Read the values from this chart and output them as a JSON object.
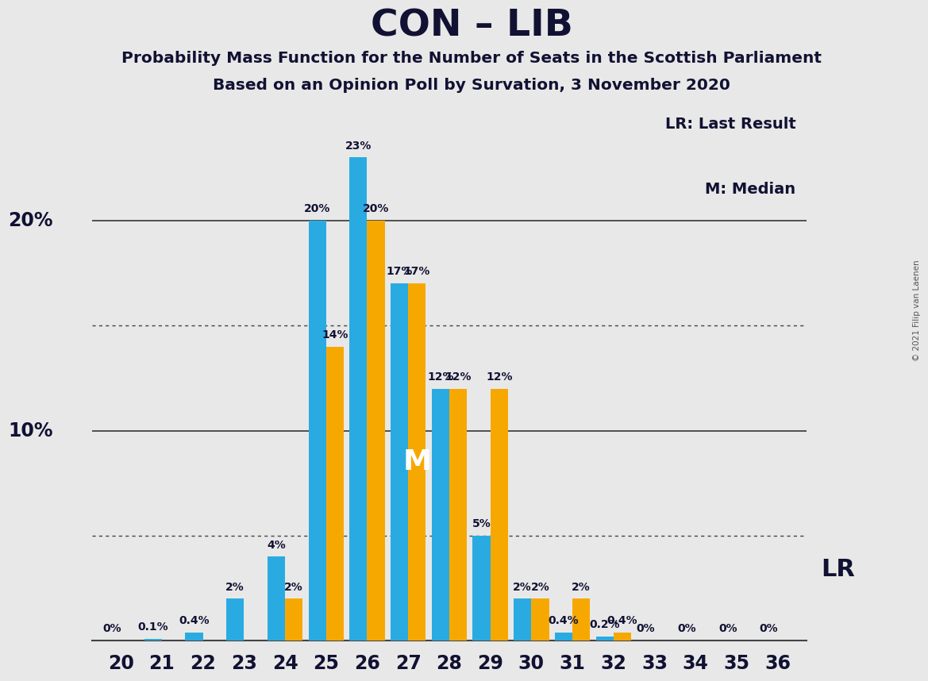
{
  "title": "CON – LIB",
  "subtitle1": "Probability Mass Function for the Number of Seats in the Scottish Parliament",
  "subtitle2": "Based on an Opinion Poll by Survation, 3 November 2020",
  "copyright": "© 2021 Filip van Laenen",
  "seats": [
    20,
    21,
    22,
    23,
    24,
    25,
    26,
    27,
    28,
    29,
    30,
    31,
    32,
    33,
    34,
    35,
    36
  ],
  "blue_values": [
    0.0,
    0.1,
    0.4,
    2.0,
    4.0,
    20.0,
    23.0,
    17.0,
    12.0,
    5.0,
    2.0,
    0.4,
    0.2,
    0.0,
    0.0,
    0.0,
    0.0
  ],
  "orange_values": [
    0.0,
    0.0,
    0.0,
    0.0,
    2.0,
    14.0,
    20.0,
    17.0,
    12.0,
    12.0,
    2.0,
    2.0,
    0.4,
    0.0,
    0.0,
    0.0,
    0.0
  ],
  "blue_labels": [
    "0%",
    "0.1%",
    "0.4%",
    "2%",
    "4%",
    "20%",
    "23%",
    "17%",
    "12%",
    "5%",
    "2%",
    "0.4%",
    "0.2%",
    "0%",
    "0%",
    "0%",
    "0%"
  ],
  "orange_labels": [
    "",
    "",
    "",
    "",
    "2%",
    "14%",
    "20%",
    "17%",
    "12%",
    "12%",
    "2%",
    "2%",
    "0.4%",
    "",
    "",
    "",
    ""
  ],
  "blue_color": "#29ABE2",
  "orange_color": "#F7A800",
  "background_color": "#E8E8E8",
  "legend_lr": "LR: Last Result",
  "legend_m": "M: Median",
  "lr_label": "LR",
  "median_seat": 27,
  "lr_seat": 31,
  "ylim": [
    0,
    26
  ],
  "dotted_lines": [
    5.0,
    15.0
  ],
  "solid_lines": [
    10.0,
    20.0
  ],
  "ytick_positions": [
    10,
    20
  ],
  "ytick_labels": [
    "10%",
    "20%"
  ]
}
